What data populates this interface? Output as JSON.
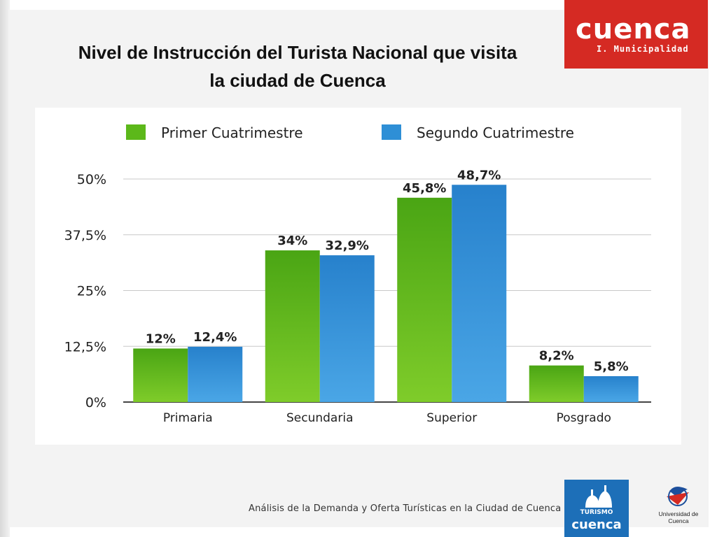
{
  "slide": {
    "title_line1": "Nivel de Instrucción del Turista Nacional que visita",
    "title_line2": "la ciudad de Cuenca",
    "footer": "Análisis de la Demanda y Oferta Turísticas en la Ciudad de Cuenca"
  },
  "logos": {
    "cuenca_main": "cuenca",
    "cuenca_sub": "I. Municipalidad",
    "turismo_word": "TURISMO",
    "turismo_city": "cuenca",
    "university": "Universidad de Cuenca",
    "brand_red": "#d52a23",
    "brand_blue": "#1d6fb8"
  },
  "chart_data": {
    "type": "bar",
    "categories": [
      "Primaria",
      "Secundaria",
      "Superior",
      "Posgrado"
    ],
    "series": [
      {
        "name": "Primer Cuatrimestre",
        "color": "#5cb81a",
        "values": [
          12,
          34,
          45.8,
          8.2
        ],
        "labels": [
          "12%",
          "34%",
          "45,8%",
          "8,2%"
        ]
      },
      {
        "name": "Segundo Cuatrimestre",
        "color": "#2e8fd6",
        "values": [
          12.4,
          32.9,
          48.7,
          5.8
        ],
        "labels": [
          "12,4%",
          "32,9%",
          "48,7%",
          "5,8%"
        ]
      }
    ],
    "y_ticks": [
      0,
      12.5,
      25,
      37.5,
      50
    ],
    "y_tick_labels": [
      "0%",
      "12,5%",
      "25%",
      "37,5%",
      "50%"
    ],
    "ylim": [
      0,
      50
    ],
    "grid": true,
    "legend_position": "top"
  }
}
